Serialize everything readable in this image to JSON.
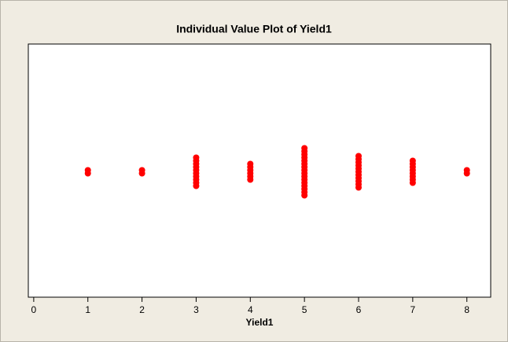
{
  "chart_data": {
    "type": "individual_value",
    "title": "Individual Value Plot of Yield1",
    "x_label": "Yield1",
    "values": [
      1,
      1,
      2,
      2,
      3,
      3,
      3,
      3,
      3,
      3,
      3,
      3,
      3,
      3,
      4,
      4,
      4,
      4,
      4,
      4,
      5,
      5,
      5,
      5,
      5,
      5,
      5,
      5,
      5,
      5,
      5,
      5,
      5,
      5,
      5,
      5,
      6,
      6,
      6,
      6,
      6,
      6,
      6,
      6,
      6,
      6,
      6,
      7,
      7,
      7,
      7,
      7,
      7,
      7,
      7,
      8,
      8
    ],
    "color": "#ff0000",
    "xlim": [
      -0.1,
      8.44
    ],
    "xticks": [
      0,
      1,
      2,
      3,
      4,
      5,
      6,
      7,
      8
    ]
  }
}
